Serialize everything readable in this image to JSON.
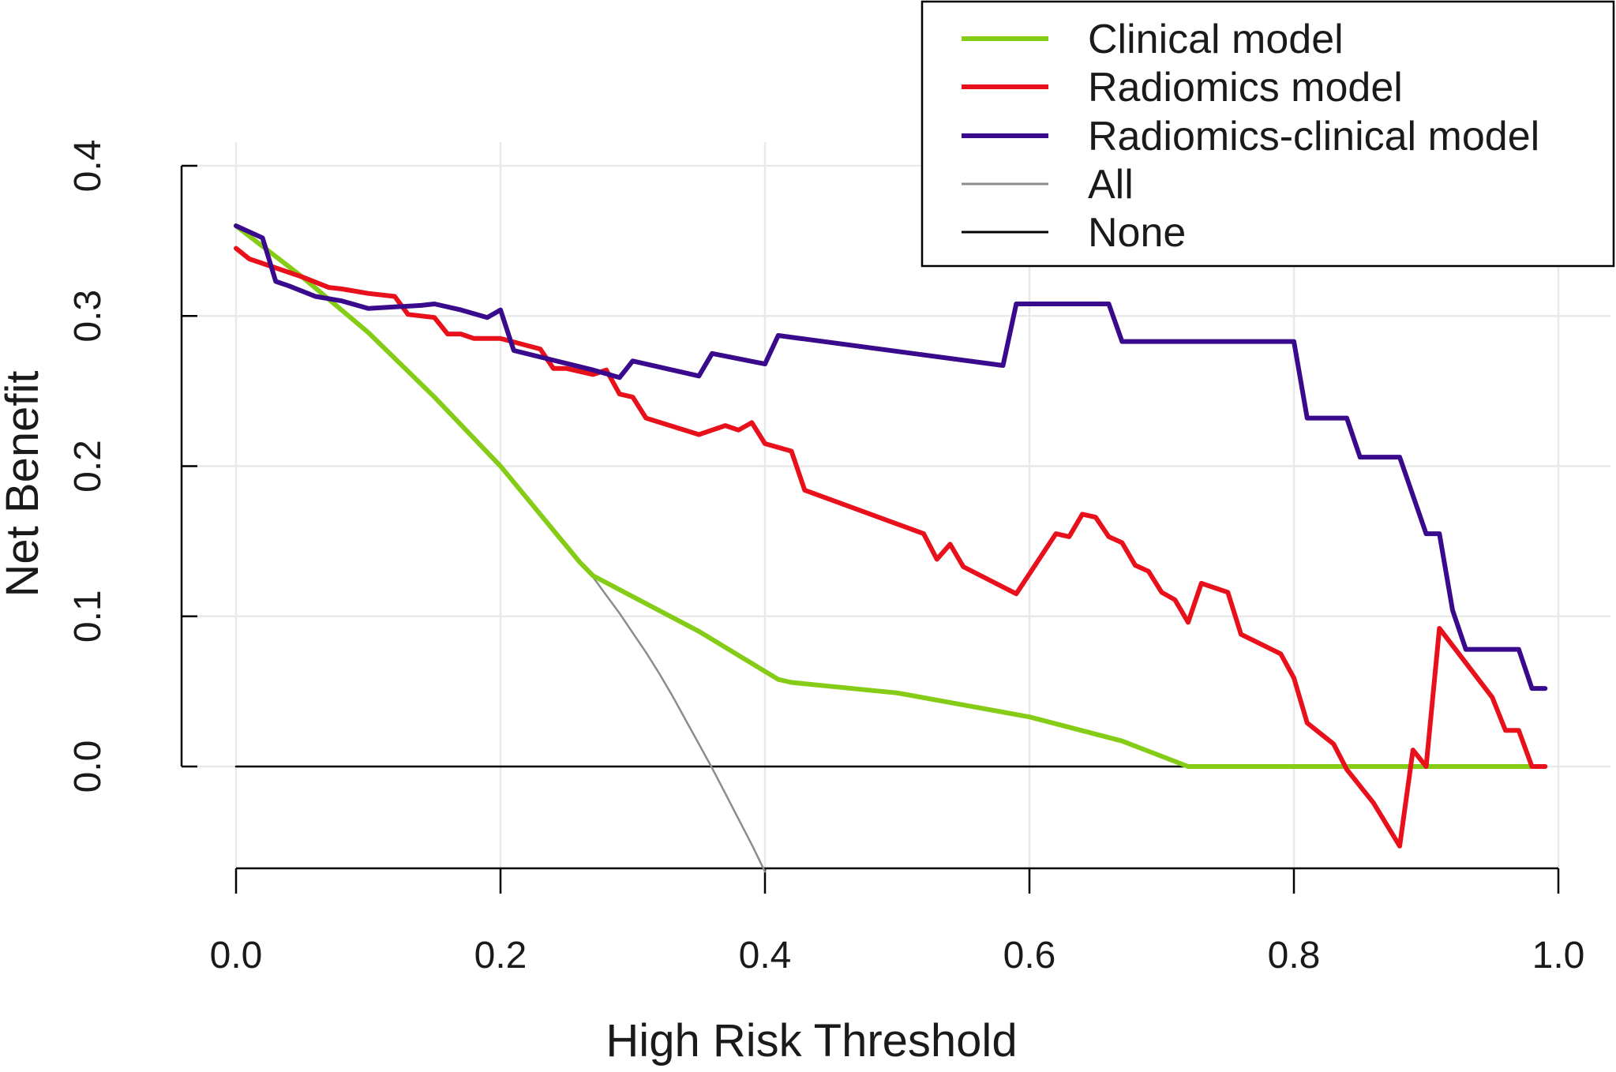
{
  "chart_data": {
    "type": "line",
    "title": "",
    "xlabel": "High Risk Threshold",
    "ylabel": "Net Benefit",
    "xlim": [
      0,
      1.0
    ],
    "ylim": [
      -0.07,
      0.4
    ],
    "x_ticks": [
      0,
      0.2,
      0.4,
      0.6,
      0.8,
      1.0
    ],
    "x_tick_labels": [
      "0.0",
      "0.2",
      "0.4",
      "0.6",
      "0.8",
      "1.0"
    ],
    "y_ticks": [
      0,
      0.1,
      0.2,
      0.3,
      0.4
    ],
    "y_tick_labels": [
      "0.0",
      "0.1",
      "0.2",
      "0.3",
      "0.4"
    ],
    "grid": true,
    "legend_position": "top-right",
    "series": [
      {
        "name": "Clinical model",
        "color": "#84cc16",
        "x": [
          0,
          0.05,
          0.1,
          0.15,
          0.2,
          0.26,
          0.27,
          0.35,
          0.41,
          0.42,
          0.5,
          0.6,
          0.67,
          0.72,
          0.8,
          0.9,
          0.98
        ],
        "y": [
          0.36,
          0.326,
          0.289,
          0.246,
          0.2,
          0.136,
          0.127,
          0.09,
          0.058,
          0.056,
          0.049,
          0.033,
          0.017,
          0,
          0,
          0,
          0
        ]
      },
      {
        "name": "Radiomics model",
        "color": "#e8101a",
        "x": [
          0,
          0.01,
          0.03,
          0.05,
          0.07,
          0.08,
          0.1,
          0.12,
          0.13,
          0.15,
          0.16,
          0.17,
          0.18,
          0.2,
          0.23,
          0.24,
          0.25,
          0.27,
          0.28,
          0.29,
          0.3,
          0.31,
          0.35,
          0.37,
          0.38,
          0.39,
          0.4,
          0.42,
          0.43,
          0.52,
          0.53,
          0.54,
          0.55,
          0.59,
          0.62,
          0.63,
          0.64,
          0.65,
          0.66,
          0.67,
          0.68,
          0.69,
          0.7,
          0.71,
          0.72,
          0.73,
          0.75,
          0.76,
          0.79,
          0.8,
          0.81,
          0.82,
          0.83,
          0.84,
          0.86,
          0.88,
          0.89,
          0.9,
          0.91,
          0.95,
          0.96,
          0.97,
          0.98,
          0.99
        ],
        "y": [
          0.345,
          0.338,
          0.332,
          0.326,
          0.319,
          0.318,
          0.315,
          0.313,
          0.301,
          0.299,
          0.288,
          0.288,
          0.285,
          0.285,
          0.278,
          0.265,
          0.265,
          0.261,
          0.264,
          0.248,
          0.246,
          0.232,
          0.221,
          0.227,
          0.224,
          0.229,
          0.215,
          0.21,
          0.184,
          0.155,
          0.138,
          0.148,
          0.133,
          0.115,
          0.155,
          0.153,
          0.168,
          0.166,
          0.153,
          0.149,
          0.134,
          0.13,
          0.116,
          0.111,
          0.096,
          0.122,
          0.116,
          0.088,
          0.075,
          0.059,
          0.029,
          0.022,
          0.015,
          -0.002,
          -0.024,
          -0.053,
          0.011,
          0,
          0.092,
          0.046,
          0.024,
          0.024,
          0,
          0
        ]
      },
      {
        "name": "Radiomics-clinical model",
        "color": "#3a0a8c",
        "x": [
          0,
          0.02,
          0.03,
          0.04,
          0.06,
          0.08,
          0.1,
          0.12,
          0.14,
          0.15,
          0.17,
          0.19,
          0.2,
          0.21,
          0.27,
          0.29,
          0.3,
          0.35,
          0.36,
          0.4,
          0.41,
          0.58,
          0.59,
          0.66,
          0.67,
          0.8,
          0.81,
          0.84,
          0.85,
          0.88,
          0.9,
          0.91,
          0.92,
          0.93,
          0.94,
          0.95,
          0.97,
          0.98,
          0.99
        ],
        "y": [
          0.36,
          0.352,
          0.323,
          0.32,
          0.313,
          0.31,
          0.305,
          0.306,
          0.307,
          0.308,
          0.304,
          0.299,
          0.304,
          0.277,
          0.264,
          0.259,
          0.27,
          0.26,
          0.275,
          0.268,
          0.287,
          0.267,
          0.308,
          0.308,
          0.283,
          0.283,
          0.232,
          0.232,
          0.206,
          0.206,
          0.155,
          0.155,
          0.104,
          0.078,
          0.078,
          0.078,
          0.078,
          0.052,
          0.052
        ]
      },
      {
        "name": "All",
        "color": "#8c8c8c",
        "x": [
          0.26,
          0.27,
          0.28,
          0.29,
          0.3,
          0.31,
          0.32,
          0.33,
          0.34,
          0.35,
          0.36,
          0.37,
          0.38,
          0.39,
          0.4
        ],
        "y": [
          0.136,
          0.126,
          0.114,
          0.102,
          0.089,
          0.076,
          0.062,
          0.047,
          0.031,
          0.015,
          -0.001,
          -0.018,
          -0.035,
          -0.052,
          -0.07
        ]
      },
      {
        "name": "None",
        "color": "#000000",
        "x": [
          0,
          0.99
        ],
        "y": [
          0,
          0
        ]
      }
    ]
  }
}
